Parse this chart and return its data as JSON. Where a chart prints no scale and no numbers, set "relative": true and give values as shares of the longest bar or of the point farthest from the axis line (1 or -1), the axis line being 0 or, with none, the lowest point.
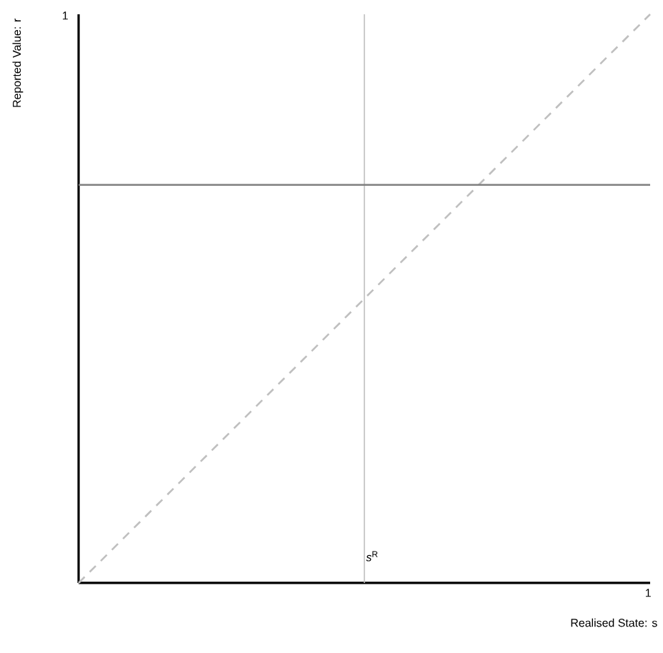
{
  "chart_data": {
    "type": "line",
    "xlabel": "Realised State: s",
    "ylabel": "Reported Value: r",
    "relative": true,
    "categories": [
      null,
      null,
      null
    ],
    "series": [
      {
        "color": "#bfbfbf",
        "values": [
          0,
          0.5,
          1
        ],
        "line_style": "dashed"
      },
      {
        "color": "#7f7f7f",
        "values": [
          0.7,
          0.7,
          0.7
        ],
        "line_style": "solid"
      }
    ],
    "annotations": [
      "1",
      "1",
      "*s*$^{R}$"
    ],
    "marker": "none"
  }
}
